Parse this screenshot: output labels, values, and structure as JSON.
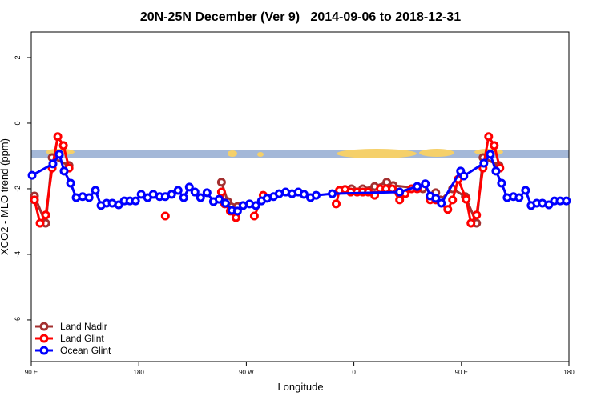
{
  "chart_data": {
    "type": "line",
    "title": "20N-25N December (Ver 9)   2014-09-06 to 2018-12-31",
    "x_label": "Longitude",
    "y_label": "XCO2 - MLO trend (ppm)",
    "xlim": [
      90,
      540
    ],
    "xticks": [
      {
        "value": 90,
        "label": "90 E"
      },
      180,
      {
        "value": 270,
        "label": "90 W"
      },
      {
        "value": 360,
        "label": "0"
      },
      {
        "value": 450,
        "label": "90 E"
      },
      {
        "value": 540,
        "label": "180"
      }
    ],
    "ylim": [
      -7.27,
      2.78
    ],
    "yticks": [
      -6,
      -4,
      -2,
      0,
      2
    ],
    "legend": "bottom-left",
    "series": [
      {
        "name": "Land Nadir",
        "color": "#a33030",
        "x": [
          92.7,
          102.1,
          107.5,
          121.6,
          null,
          249.2,
          254.5,
          262.6,
          null,
          358.0,
          367.4,
          377.4,
          387.5,
          392.9,
          417.7,
          null,
          428.5,
          432.5,
          442.6,
          453.3,
          462.7,
          468.1,
          481.5
        ],
        "values": [
          -2.22,
          -3.05,
          -1.05,
          -1.29,
          null,
          -1.8,
          -2.39,
          -2.54,
          null,
          -2.0,
          -2.0,
          -1.93,
          -1.8,
          -1.9,
          -2.0,
          null,
          -2.12,
          -2.34,
          -2.0,
          -2.24,
          -3.05,
          -1.05,
          -1.29
        ]
      },
      {
        "name": "Land Glint",
        "color": "#ff0000",
        "x": [
          92.7,
          97.4,
          102.1,
          107.5,
          112.2,
          116.9,
          121.6,
          null,
          202.2,
          null,
          249.2,
          251.9,
          256.6,
          261.3,
          null,
          276.7,
          284.1,
          null,
          345.2,
          347.9,
          352.6,
          357.3,
          362.7,
          367.4,
          372.1,
          377.4,
          382.1,
          386.8,
          392.2,
          398.3,
          403.0,
          408.3,
          413.0,
          null,
          423.8,
          428.5,
          438.6,
          442.6,
          447.3,
          454.0,
          458.0,
          462.7,
          468.1,
          472.8,
          477.5,
          482.2
        ],
        "values": [
          -2.34,
          -3.05,
          -2.8,
          -1.37,
          -0.41,
          -0.68,
          -1.37,
          null,
          -2.83,
          null,
          -2.1,
          -2.46,
          -2.68,
          -2.88,
          null,
          -2.83,
          -2.2,
          null,
          -2.46,
          -2.05,
          -2.02,
          -2.1,
          -2.1,
          -2.1,
          -2.1,
          -2.2,
          -2.0,
          -2.0,
          -2.0,
          -2.34,
          -2.15,
          -2.0,
          -2.0,
          null,
          -2.34,
          -2.34,
          -2.63,
          -2.34,
          -1.71,
          -2.32,
          -3.05,
          -2.8,
          -1.37,
          -0.41,
          -0.68,
          -1.37
        ]
      },
      {
        "name": "Ocean Glint",
        "color": "#0000ff",
        "x": [
          90.7,
          108.1,
          113.5,
          117.5,
          122.9,
          127.6,
          133.0,
          138.4,
          143.7,
          148.4,
          153.1,
          157.8,
          163.2,
          167.9,
          172.6,
          177.3,
          182.0,
          187.4,
          192.1,
          197.5,
          202.2,
          207.5,
          212.9,
          217.6,
          222.3,
          227.0,
          231.7,
          237.1,
          242.5,
          247.2,
          252.5,
          257.9,
          262.6,
          267.3,
          272.7,
          278.0,
          282.7,
          287.4,
          292.8,
          297.5,
          302.9,
          308.3,
          313.6,
          318.3,
          323.7,
          328.4,
          341.9,
          398.3,
          413.0,
          419.8,
          423.8,
          428.5,
          433.2,
          449.3,
          452.0,
          468.8,
          474.2,
          478.9,
          483.6,
          488.3,
          493.6,
          498.3,
          503.7,
          508.4,
          513.1,
          517.8,
          523.2,
          527.9,
          532.6,
          537.9
        ],
        "values": [
          -1.59,
          -1.24,
          -0.95,
          -1.46,
          -1.83,
          -2.27,
          -2.24,
          -2.27,
          -2.05,
          -2.51,
          -2.44,
          -2.44,
          -2.49,
          -2.37,
          -2.37,
          -2.37,
          -2.17,
          -2.27,
          -2.17,
          -2.24,
          -2.24,
          -2.17,
          -2.05,
          -2.27,
          -1.95,
          -2.1,
          -2.27,
          -2.12,
          -2.39,
          -2.32,
          -2.44,
          -2.66,
          -2.68,
          -2.51,
          -2.46,
          -2.51,
          -2.37,
          -2.29,
          -2.24,
          -2.15,
          -2.1,
          -2.15,
          -2.1,
          -2.17,
          -2.27,
          -2.2,
          -2.15,
          -2.1,
          -1.93,
          -1.85,
          -2.22,
          -2.29,
          -2.44,
          -1.46,
          -1.61,
          -1.22,
          -0.95,
          -1.46,
          -1.83,
          -2.27,
          -2.24,
          -2.27,
          -2.05,
          -2.51,
          -2.44,
          -2.44,
          -2.49,
          -2.37,
          -2.37,
          -2.37
        ]
      }
    ]
  }
}
